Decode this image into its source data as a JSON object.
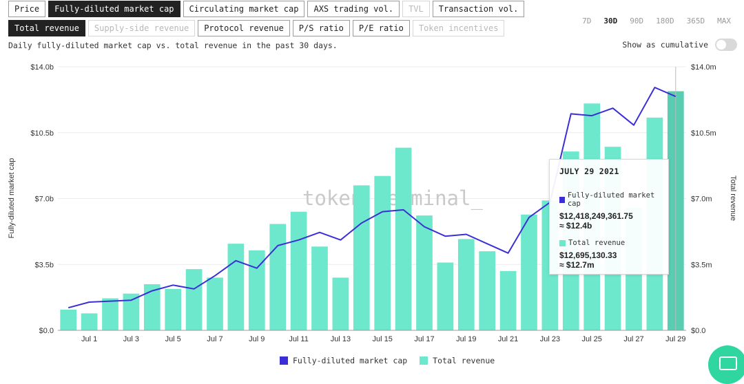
{
  "tabs_row1": [
    {
      "label": "Price",
      "state": "normal"
    },
    {
      "label": "Fully-diluted market cap",
      "state": "active"
    },
    {
      "label": "Circulating market cap",
      "state": "normal"
    },
    {
      "label": "AXS trading vol.",
      "state": "normal"
    },
    {
      "label": "TVL",
      "state": "disabled"
    },
    {
      "label": "Transaction vol.",
      "state": "normal"
    }
  ],
  "tabs_row2": [
    {
      "label": "Total revenue",
      "state": "active"
    },
    {
      "label": "Supply-side revenue",
      "state": "disabled"
    },
    {
      "label": "Protocol revenue",
      "state": "normal"
    },
    {
      "label": "P/S ratio",
      "state": "normal"
    },
    {
      "label": "P/E ratio",
      "state": "normal"
    },
    {
      "label": "Token incentives",
      "state": "disabled"
    }
  ],
  "time_ranges": [
    {
      "label": "7D",
      "active": false
    },
    {
      "label": "30D",
      "active": true
    },
    {
      "label": "90D",
      "active": false
    },
    {
      "label": "180D",
      "active": false
    },
    {
      "label": "365D",
      "active": false
    },
    {
      "label": "MAX",
      "active": false
    }
  ],
  "description": "Daily fully-diluted market cap vs. total revenue in the past 30 days.",
  "cumulative_label": "Show as cumulative",
  "watermark": "token terminal_",
  "tooltip": {
    "date": "JULY 29 2021",
    "series1_name": "Fully-diluted market cap",
    "series1_value": "$12,418,249,361.75",
    "series1_approx": "≈ $12.4b",
    "series2_name": "Total revenue",
    "series2_value": "$12,695,130.33",
    "series2_approx": "≈ $12.7m"
  },
  "colors": {
    "line": "#3a2fd6",
    "bar": "#6ee8cc",
    "bar_highlight": "#58cdb1"
  },
  "chart_data": {
    "type": "bar",
    "xlabel": "",
    "ylabel_left": "Fully-diluted market cap",
    "ylabel_right": "Total revenue",
    "left_ticks": [
      "$0.0",
      "$3.5b",
      "$7.0b",
      "$10.5b",
      "$14.0b"
    ],
    "right_ticks": [
      "$0.0",
      "$3.5m",
      "$7.0m",
      "$10.5m",
      "$14.0m"
    ],
    "ylim_left": [
      0,
      14
    ],
    "ylim_right": [
      0,
      14
    ],
    "x_tick_labels": [
      "Jul 1",
      "Jul 3",
      "Jul 5",
      "Jul 7",
      "Jul 9",
      "Jul 11",
      "Jul 13",
      "Jul 15",
      "Jul 17",
      "Jul 19",
      "Jul 21",
      "Jul 23",
      "Jul 25",
      "Jul 27",
      "Jul 29"
    ],
    "categories": [
      "Jun 30",
      "Jul 1",
      "Jul 2",
      "Jul 3",
      "Jul 4",
      "Jul 5",
      "Jul 6",
      "Jul 7",
      "Jul 8",
      "Jul 9",
      "Jul 10",
      "Jul 11",
      "Jul 12",
      "Jul 13",
      "Jul 14",
      "Jul 15",
      "Jul 16",
      "Jul 17",
      "Jul 18",
      "Jul 19",
      "Jul 20",
      "Jul 21",
      "Jul 22",
      "Jul 23",
      "Jul 24",
      "Jul 25",
      "Jul 26",
      "Jul 27",
      "Jul 28",
      "Jul 29"
    ],
    "series": [
      {
        "name": "Fully-diluted market cap",
        "kind": "line",
        "axis": "left",
        "unit": "$b",
        "values": [
          1.2,
          1.5,
          1.55,
          1.6,
          2.1,
          2.4,
          2.2,
          2.9,
          3.7,
          3.3,
          4.5,
          4.8,
          5.2,
          4.8,
          5.7,
          6.3,
          6.4,
          5.5,
          5.0,
          5.1,
          4.6,
          4.1,
          6.0,
          6.8,
          11.5,
          11.4,
          11.8,
          10.9,
          12.9,
          12.42
        ]
      },
      {
        "name": "Total revenue",
        "kind": "bar",
        "axis": "right",
        "unit": "$m",
        "values": [
          1.1,
          0.9,
          1.7,
          1.95,
          2.45,
          2.2,
          3.25,
          2.8,
          4.6,
          4.25,
          5.65,
          6.3,
          4.45,
          2.8,
          7.7,
          8.2,
          9.7,
          6.1,
          3.6,
          4.85,
          4.2,
          3.15,
          6.15,
          6.9,
          9.5,
          12.05,
          9.75,
          6.5,
          11.3,
          12.7
        ]
      }
    ],
    "grid": true,
    "legend_position": "bottom-center",
    "highlighted_category": "Jul 29"
  }
}
